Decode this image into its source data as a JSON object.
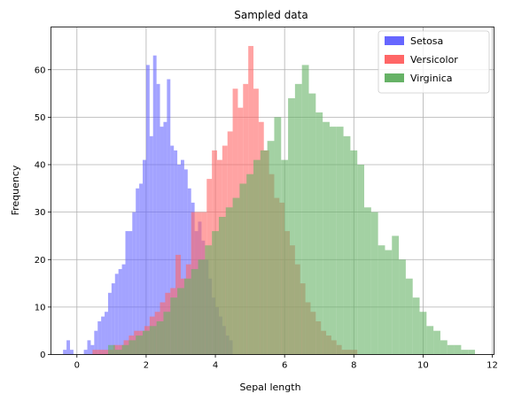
{
  "chart_data": {
    "type": "bar",
    "title": "Sampled data",
    "xlabel": "Sepal length",
    "ylabel": "Frequency",
    "xlim": [
      -0.75,
      12.05
    ],
    "ylim": [
      0,
      69
    ],
    "xticks": [
      0,
      2,
      4,
      6,
      8,
      10,
      12
    ],
    "yticks": [
      0,
      10,
      20,
      30,
      40,
      50,
      60
    ],
    "grid": true,
    "legend_position": "top-right",
    "series": [
      {
        "name": "Setosa",
        "color": "#6666ff",
        "bin_width": 0.1,
        "bins": [
          [
            -0.4,
            1
          ],
          [
            -0.3,
            3
          ],
          [
            -0.2,
            1
          ],
          [
            0.2,
            1
          ],
          [
            0.3,
            3
          ],
          [
            0.4,
            2
          ],
          [
            0.5,
            5
          ],
          [
            0.6,
            7
          ],
          [
            0.7,
            8
          ],
          [
            0.8,
            9
          ],
          [
            0.9,
            13
          ],
          [
            1.0,
            15
          ],
          [
            1.1,
            17
          ],
          [
            1.2,
            18
          ],
          [
            1.3,
            19
          ],
          [
            1.4,
            26
          ],
          [
            1.5,
            26
          ],
          [
            1.6,
            30
          ],
          [
            1.7,
            35
          ],
          [
            1.8,
            36
          ],
          [
            1.9,
            41
          ],
          [
            2.0,
            61
          ],
          [
            2.1,
            46
          ],
          [
            2.2,
            63
          ],
          [
            2.3,
            57
          ],
          [
            2.4,
            48
          ],
          [
            2.5,
            49
          ],
          [
            2.6,
            58
          ],
          [
            2.7,
            44
          ],
          [
            2.8,
            43
          ],
          [
            2.9,
            40
          ],
          [
            3.0,
            41
          ],
          [
            3.1,
            39
          ],
          [
            3.2,
            35
          ],
          [
            3.3,
            32
          ],
          [
            3.4,
            26
          ],
          [
            3.5,
            28
          ],
          [
            3.6,
            24
          ],
          [
            3.7,
            20
          ],
          [
            3.8,
            16
          ],
          [
            3.9,
            12
          ],
          [
            4.0,
            10
          ],
          [
            4.1,
            8
          ],
          [
            4.2,
            6
          ],
          [
            4.3,
            4
          ],
          [
            4.4,
            3
          ]
        ]
      },
      {
        "name": "Versicolor",
        "color": "#ff6666",
        "bin_width": 0.15,
        "bins": [
          [
            0.45,
            1
          ],
          [
            0.6,
            1
          ],
          [
            0.75,
            1
          ],
          [
            0.9,
            1
          ],
          [
            1.05,
            2
          ],
          [
            1.2,
            2
          ],
          [
            1.35,
            3
          ],
          [
            1.5,
            4
          ],
          [
            1.65,
            5
          ],
          [
            1.8,
            5
          ],
          [
            1.95,
            6
          ],
          [
            2.1,
            8
          ],
          [
            2.25,
            9
          ],
          [
            2.4,
            11
          ],
          [
            2.55,
            13
          ],
          [
            2.7,
            14
          ],
          [
            2.85,
            21
          ],
          [
            3.0,
            16
          ],
          [
            3.15,
            19
          ],
          [
            3.3,
            30
          ],
          [
            3.45,
            30
          ],
          [
            3.6,
            30
          ],
          [
            3.75,
            37
          ],
          [
            3.9,
            43
          ],
          [
            4.05,
            41
          ],
          [
            4.2,
            44
          ],
          [
            4.35,
            47
          ],
          [
            4.5,
            56
          ],
          [
            4.65,
            52
          ],
          [
            4.8,
            57
          ],
          [
            4.95,
            65
          ],
          [
            5.1,
            56
          ],
          [
            5.25,
            49
          ],
          [
            5.4,
            43
          ],
          [
            5.55,
            38
          ],
          [
            5.7,
            33
          ],
          [
            5.85,
            32
          ],
          [
            6.0,
            26
          ],
          [
            6.15,
            23
          ],
          [
            6.3,
            19
          ],
          [
            6.45,
            15
          ],
          [
            6.6,
            11
          ],
          [
            6.75,
            9
          ],
          [
            6.9,
            7
          ],
          [
            7.05,
            5
          ],
          [
            7.2,
            4
          ],
          [
            7.35,
            3
          ],
          [
            7.5,
            2
          ],
          [
            7.65,
            1
          ],
          [
            7.8,
            1
          ],
          [
            7.95,
            1
          ]
        ]
      },
      {
        "name": "Virginica",
        "color": "#66b266",
        "bin_width": 0.2,
        "bins": [
          [
            0.9,
            2
          ],
          [
            1.1,
            1
          ],
          [
            1.3,
            2
          ],
          [
            1.5,
            3
          ],
          [
            1.7,
            4
          ],
          [
            1.9,
            5
          ],
          [
            2.1,
            6
          ],
          [
            2.3,
            7
          ],
          [
            2.5,
            9
          ],
          [
            2.7,
            12
          ],
          [
            2.9,
            14
          ],
          [
            3.1,
            16
          ],
          [
            3.3,
            18
          ],
          [
            3.5,
            20
          ],
          [
            3.7,
            23
          ],
          [
            3.9,
            26
          ],
          [
            4.1,
            29
          ],
          [
            4.3,
            31
          ],
          [
            4.5,
            33
          ],
          [
            4.7,
            36
          ],
          [
            4.9,
            38
          ],
          [
            5.1,
            41
          ],
          [
            5.3,
            43
          ],
          [
            5.5,
            45
          ],
          [
            5.7,
            50
          ],
          [
            5.9,
            41
          ],
          [
            6.1,
            54
          ],
          [
            6.3,
            57
          ],
          [
            6.5,
            61
          ],
          [
            6.7,
            55
          ],
          [
            6.9,
            51
          ],
          [
            7.1,
            49
          ],
          [
            7.3,
            48
          ],
          [
            7.5,
            48
          ],
          [
            7.7,
            46
          ],
          [
            7.9,
            43
          ],
          [
            8.1,
            40
          ],
          [
            8.3,
            31
          ],
          [
            8.5,
            30
          ],
          [
            8.7,
            23
          ],
          [
            8.9,
            22
          ],
          [
            9.1,
            25
          ],
          [
            9.3,
            20
          ],
          [
            9.5,
            16
          ],
          [
            9.7,
            12
          ],
          [
            9.9,
            9
          ],
          [
            10.1,
            6
          ],
          [
            10.3,
            5
          ],
          [
            10.5,
            3
          ],
          [
            10.7,
            2
          ],
          [
            10.9,
            2
          ],
          [
            11.1,
            1
          ],
          [
            11.3,
            1
          ]
        ]
      }
    ]
  }
}
